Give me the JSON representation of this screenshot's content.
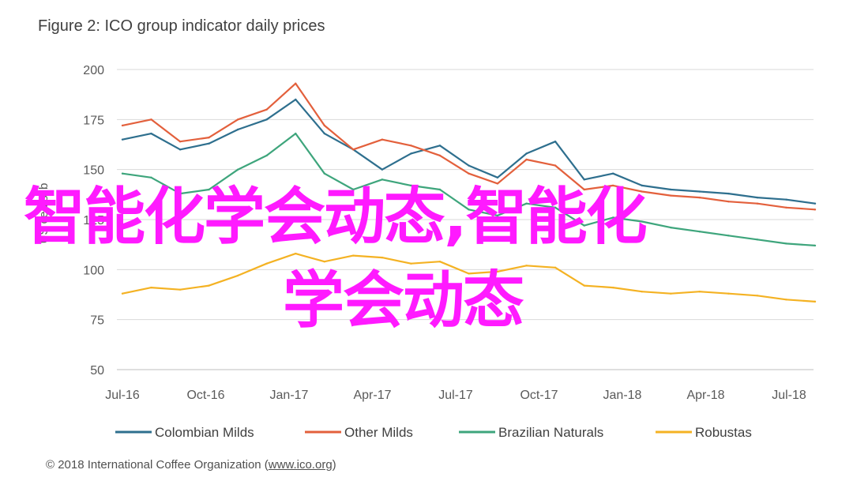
{
  "title": "Figure 2: ICO group indicator daily prices",
  "footer": {
    "prefix": "© 2018 International Coffee Organization (",
    "link": "www.ico.org",
    "suffix": ")"
  },
  "overlay": {
    "line1": "智能化学会动态,智能化",
    "line2": "学会动态"
  },
  "colors": {
    "colombian": "#2e6f8e",
    "other": "#e3603c",
    "brazilian": "#3ea57c",
    "robustas": "#f4b223",
    "grid": "#d9d9d9",
    "axis_text": "#595959",
    "overlay": "#ff1aff"
  },
  "chart_data": {
    "type": "line",
    "title": "Figure 2: ICO group indicator daily prices",
    "ylabel": "US cents/lb",
    "ylim": [
      50,
      200
    ],
    "yticks": [
      "50",
      "75",
      "100",
      "125",
      "150",
      "175",
      "200"
    ],
    "xticks": [
      "Jul-16",
      "Oct-16",
      "Jan-17",
      "Apr-17",
      "Jul-17",
      "Oct-17",
      "Jan-18",
      "Apr-18",
      "Jul-18"
    ],
    "grid": true,
    "legend_position": "bottom",
    "x": [
      "Jul-16",
      "Aug-16",
      "Sep-16",
      "Oct-16",
      "Nov-16",
      "Dec-16",
      "Jan-17",
      "Feb-17",
      "Mar-17",
      "Apr-17",
      "May-17",
      "Jun-17",
      "Jul-17",
      "Aug-17",
      "Sep-17",
      "Oct-17",
      "Nov-17",
      "Dec-17",
      "Jan-18",
      "Feb-18",
      "Mar-18",
      "Apr-18",
      "May-18",
      "Jun-18",
      "Jul-18"
    ],
    "series": [
      {
        "name": "Colombian Milds",
        "values": [
          165,
          168,
          160,
          163,
          170,
          175,
          185,
          168,
          160,
          150,
          158,
          162,
          152,
          146,
          158,
          164,
          145,
          148,
          142,
          140,
          139,
          138,
          136,
          135,
          133
        ]
      },
      {
        "name": "Other Milds",
        "values": [
          172,
          175,
          164,
          166,
          175,
          180,
          193,
          172,
          160,
          165,
          162,
          157,
          148,
          143,
          155,
          152,
          140,
          142,
          139,
          137,
          136,
          134,
          133,
          131,
          130
        ]
      },
      {
        "name": "Brazilian Naturals",
        "values": [
          148,
          146,
          138,
          140,
          150,
          157,
          168,
          148,
          140,
          145,
          142,
          140,
          130,
          127,
          133,
          131,
          122,
          126,
          124,
          121,
          119,
          117,
          115,
          113,
          112
        ]
      },
      {
        "name": "Robustas",
        "values": [
          88,
          91,
          90,
          92,
          97,
          103,
          108,
          104,
          107,
          106,
          103,
          104,
          98,
          99,
          102,
          101,
          92,
          91,
          89,
          88,
          89,
          88,
          87,
          85,
          84
        ]
      }
    ]
  }
}
